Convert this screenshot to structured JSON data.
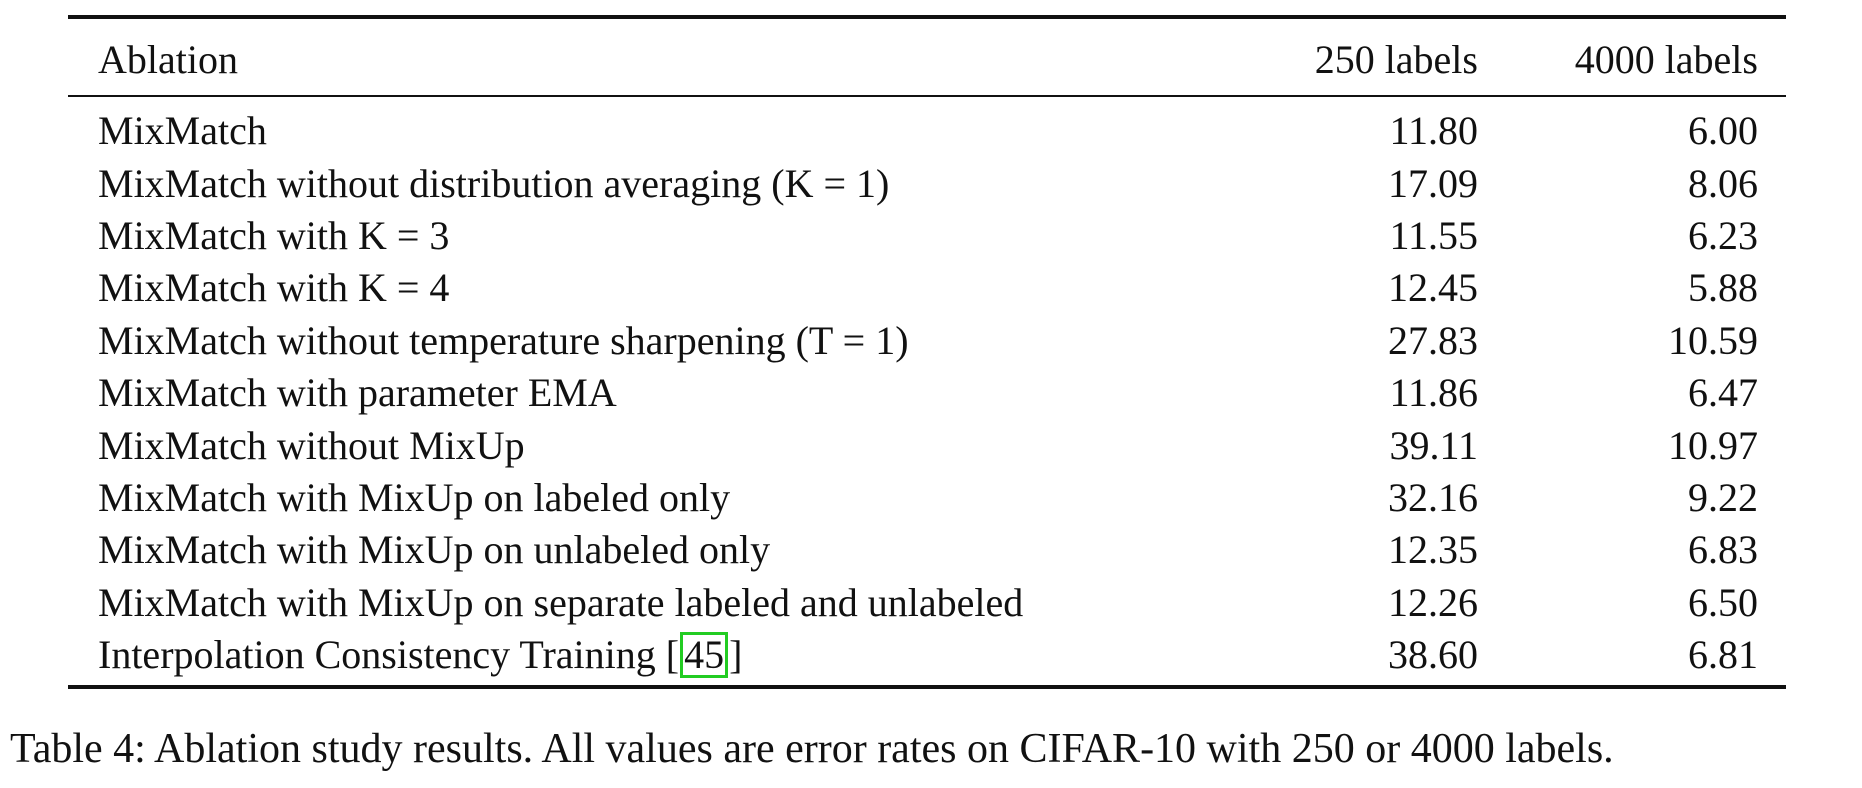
{
  "table": {
    "headers": [
      "Ablation",
      "250 labels",
      "4000 labels"
    ],
    "rows": [
      {
        "name": "MixMatch",
        "cite": "",
        "suffix": "",
        "v250": "11.80",
        "v4000": "6.00"
      },
      {
        "name": "MixMatch without distribution averaging (K = 1)",
        "cite": "",
        "suffix": "",
        "v250": "17.09",
        "v4000": "8.06"
      },
      {
        "name": "MixMatch with K = 3",
        "cite": "",
        "suffix": "",
        "v250": "11.55",
        "v4000": "6.23"
      },
      {
        "name": "MixMatch with K = 4",
        "cite": "",
        "suffix": "",
        "v250": "12.45",
        "v4000": "5.88"
      },
      {
        "name": "MixMatch without temperature sharpening (T = 1)",
        "cite": "",
        "suffix": "",
        "v250": "27.83",
        "v4000": "10.59"
      },
      {
        "name": "MixMatch with parameter EMA",
        "cite": "",
        "suffix": "",
        "v250": "11.86",
        "v4000": "6.47"
      },
      {
        "name": "MixMatch without MixUp",
        "cite": "",
        "suffix": "",
        "v250": "39.11",
        "v4000": "10.97"
      },
      {
        "name": "MixMatch with MixUp on labeled only",
        "cite": "",
        "suffix": "",
        "v250": "32.16",
        "v4000": "9.22"
      },
      {
        "name": "MixMatch with MixUp on unlabeled only",
        "cite": "",
        "suffix": "",
        "v250": "12.35",
        "v4000": "6.83"
      },
      {
        "name": "MixMatch with MixUp on separate labeled and unlabeled",
        "cite": "",
        "suffix": "",
        "v250": "12.26",
        "v4000": "6.50"
      },
      {
        "name": "Interpolation Consistency Training [",
        "cite": "45",
        "suffix": "]",
        "v250": "38.60",
        "v4000": "6.81"
      }
    ]
  },
  "caption": "Table 4: Ablation study results. All values are error rates on CIFAR-10 with 250 or 4000 labels.",
  "colors": {
    "citation_box": "#22cc22",
    "text": "#111111"
  }
}
